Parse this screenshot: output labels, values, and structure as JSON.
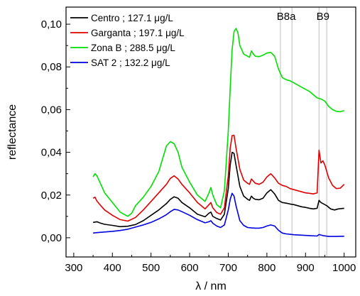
{
  "chart_data": {
    "type": "line",
    "xlabel": "λ / nm",
    "ylabel": "reflectance",
    "xlim": [
      280,
      1030
    ],
    "ylim": [
      -0.009,
      0.108
    ],
    "x_ticks": [
      300,
      400,
      500,
      600,
      700,
      800,
      900,
      1000
    ],
    "x_tick_labels": [
      "300",
      "400",
      "500",
      "600",
      "700",
      "800",
      "900",
      "1000"
    ],
    "y_ticks": [
      0.0,
      0.02,
      0.04,
      0.06,
      0.08,
      0.1
    ],
    "y_tick_labels": [
      "0,00",
      "0,02",
      "0,04",
      "0,06",
      "0,08",
      "0,10"
    ],
    "grid": false,
    "legend_position": "top-left",
    "bands": [
      {
        "label": "B8a",
        "x_start": 835,
        "x_end": 865
      },
      {
        "label": "B9",
        "x_start": 935,
        "x_end": 955
      }
    ],
    "series": [
      {
        "name": "Centro ; 127.1 μg/L",
        "color": "#000000",
        "points": [
          [
            350,
            0.0072
          ],
          [
            360,
            0.0075
          ],
          [
            370,
            0.0068
          ],
          [
            380,
            0.0063
          ],
          [
            400,
            0.0058
          ],
          [
            420,
            0.0052
          ],
          [
            440,
            0.0054
          ],
          [
            460,
            0.0062
          ],
          [
            480,
            0.008
          ],
          [
            500,
            0.0105
          ],
          [
            520,
            0.013
          ],
          [
            540,
            0.016
          ],
          [
            550,
            0.018
          ],
          [
            560,
            0.0192
          ],
          [
            570,
            0.0185
          ],
          [
            580,
            0.0165
          ],
          [
            600,
            0.014
          ],
          [
            620,
            0.011
          ],
          [
            640,
            0.0098
          ],
          [
            650,
            0.0115
          ],
          [
            655,
            0.012
          ],
          [
            660,
            0.01
          ],
          [
            670,
            0.009
          ],
          [
            680,
            0.0083
          ],
          [
            690,
            0.011
          ],
          [
            700,
            0.023
          ],
          [
            705,
            0.034
          ],
          [
            710,
            0.04
          ],
          [
            715,
            0.0395
          ],
          [
            720,
            0.034
          ],
          [
            730,
            0.024
          ],
          [
            740,
            0.0195
          ],
          [
            750,
            0.018
          ],
          [
            755,
            0.0175
          ],
          [
            760,
            0.0195
          ],
          [
            765,
            0.0185
          ],
          [
            770,
            0.018
          ],
          [
            780,
            0.0178
          ],
          [
            790,
            0.0185
          ],
          [
            800,
            0.021
          ],
          [
            810,
            0.0225
          ],
          [
            820,
            0.0205
          ],
          [
            830,
            0.0175
          ],
          [
            840,
            0.0165
          ],
          [
            850,
            0.0162
          ],
          [
            860,
            0.0158
          ],
          [
            870,
            0.0155
          ],
          [
            880,
            0.015
          ],
          [
            890,
            0.0145
          ],
          [
            900,
            0.0142
          ],
          [
            910,
            0.0138
          ],
          [
            920,
            0.0135
          ],
          [
            930,
            0.0138
          ],
          [
            935,
            0.0175
          ],
          [
            940,
            0.0165
          ],
          [
            945,
            0.016
          ],
          [
            955,
            0.015
          ],
          [
            965,
            0.0135
          ],
          [
            975,
            0.013
          ],
          [
            985,
            0.0135
          ],
          [
            1000,
            0.0138
          ]
        ]
      },
      {
        "name": "Garganta ; 197.1 μg/L",
        "color": "#e00000",
        "points": [
          [
            350,
            0.0185
          ],
          [
            355,
            0.019
          ],
          [
            360,
            0.0172
          ],
          [
            370,
            0.015
          ],
          [
            380,
            0.013
          ],
          [
            400,
            0.0105
          ],
          [
            420,
            0.0085
          ],
          [
            440,
            0.0078
          ],
          [
            460,
            0.0095
          ],
          [
            480,
            0.013
          ],
          [
            500,
            0.017
          ],
          [
            520,
            0.021
          ],
          [
            540,
            0.025
          ],
          [
            550,
            0.0278
          ],
          [
            560,
            0.029
          ],
          [
            570,
            0.0275
          ],
          [
            580,
            0.025
          ],
          [
            600,
            0.021
          ],
          [
            620,
            0.0165
          ],
          [
            640,
            0.0135
          ],
          [
            650,
            0.0155
          ],
          [
            655,
            0.0165
          ],
          [
            660,
            0.014
          ],
          [
            670,
            0.0118
          ],
          [
            680,
            0.011
          ],
          [
            690,
            0.014
          ],
          [
            700,
            0.029
          ],
          [
            705,
            0.042
          ],
          [
            710,
            0.0478
          ],
          [
            715,
            0.048
          ],
          [
            720,
            0.042
          ],
          [
            730,
            0.032
          ],
          [
            740,
            0.027
          ],
          [
            750,
            0.0255
          ],
          [
            755,
            0.025
          ],
          [
            760,
            0.0275
          ],
          [
            765,
            0.0265
          ],
          [
            770,
            0.0255
          ],
          [
            780,
            0.025
          ],
          [
            790,
            0.026
          ],
          [
            800,
            0.0285
          ],
          [
            810,
            0.03
          ],
          [
            820,
            0.028
          ],
          [
            830,
            0.0255
          ],
          [
            840,
            0.0245
          ],
          [
            850,
            0.024
          ],
          [
            860,
            0.023
          ],
          [
            870,
            0.0225
          ],
          [
            880,
            0.022
          ],
          [
            890,
            0.0215
          ],
          [
            900,
            0.021
          ],
          [
            910,
            0.0208
          ],
          [
            920,
            0.0205
          ],
          [
            930,
            0.021
          ],
          [
            935,
            0.041
          ],
          [
            940,
            0.035
          ],
          [
            945,
            0.036
          ],
          [
            950,
            0.034
          ],
          [
            960,
            0.028
          ],
          [
            970,
            0.0245
          ],
          [
            980,
            0.023
          ],
          [
            990,
            0.0232
          ],
          [
            1000,
            0.025
          ]
        ]
      },
      {
        "name": "Zona B ; 288.5 μg/L",
        "color": "#00e000",
        "points": [
          [
            350,
            0.0285
          ],
          [
            355,
            0.03
          ],
          [
            360,
            0.029
          ],
          [
            370,
            0.025
          ],
          [
            380,
            0.021
          ],
          [
            400,
            0.0165
          ],
          [
            420,
            0.012
          ],
          [
            440,
            0.01
          ],
          [
            450,
            0.0115
          ],
          [
            460,
            0.015
          ],
          [
            480,
            0.019
          ],
          [
            500,
            0.024
          ],
          [
            520,
            0.031
          ],
          [
            530,
            0.037
          ],
          [
            540,
            0.043
          ],
          [
            550,
            0.045
          ],
          [
            560,
            0.044
          ],
          [
            570,
            0.04
          ],
          [
            580,
            0.033
          ],
          [
            600,
            0.026
          ],
          [
            620,
            0.02
          ],
          [
            640,
            0.017
          ],
          [
            650,
            0.021
          ],
          [
            655,
            0.0235
          ],
          [
            660,
            0.02
          ],
          [
            670,
            0.0155
          ],
          [
            680,
            0.014
          ],
          [
            690,
            0.022
          ],
          [
            700,
            0.05
          ],
          [
            705,
            0.07
          ],
          [
            710,
            0.088
          ],
          [
            715,
            0.0965
          ],
          [
            720,
            0.098
          ],
          [
            725,
            0.096
          ],
          [
            730,
            0.09
          ],
          [
            740,
            0.086
          ],
          [
            750,
            0.085
          ],
          [
            755,
            0.0845
          ],
          [
            760,
            0.0875
          ],
          [
            765,
            0.086
          ],
          [
            770,
            0.085
          ],
          [
            780,
            0.0848
          ],
          [
            790,
            0.0855
          ],
          [
            800,
            0.0865
          ],
          [
            810,
            0.0868
          ],
          [
            820,
            0.085
          ],
          [
            830,
            0.079
          ],
          [
            840,
            0.075
          ],
          [
            850,
            0.074
          ],
          [
            860,
            0.0735
          ],
          [
            870,
            0.0725
          ],
          [
            880,
            0.0715
          ],
          [
            890,
            0.0705
          ],
          [
            900,
            0.0695
          ],
          [
            910,
            0.0685
          ],
          [
            920,
            0.067
          ],
          [
            930,
            0.0655
          ],
          [
            940,
            0.065
          ],
          [
            950,
            0.064
          ],
          [
            960,
            0.0615
          ],
          [
            970,
            0.06
          ],
          [
            980,
            0.0592
          ],
          [
            990,
            0.059
          ],
          [
            1000,
            0.0595
          ]
        ]
      },
      {
        "name": "SAT 2 ; 132.2 μg/L",
        "color": "#0000e0",
        "points": [
          [
            350,
            0.0022
          ],
          [
            360,
            0.0024
          ],
          [
            380,
            0.0027
          ],
          [
            400,
            0.003
          ],
          [
            420,
            0.0034
          ],
          [
            440,
            0.004
          ],
          [
            460,
            0.005
          ],
          [
            480,
            0.006
          ],
          [
            500,
            0.0072
          ],
          [
            520,
            0.0088
          ],
          [
            540,
            0.0108
          ],
          [
            550,
            0.0122
          ],
          [
            560,
            0.0133
          ],
          [
            570,
            0.013
          ],
          [
            580,
            0.0122
          ],
          [
            600,
            0.0105
          ],
          [
            620,
            0.0085
          ],
          [
            640,
            0.007
          ],
          [
            650,
            0.0075
          ],
          [
            655,
            0.008
          ],
          [
            660,
            0.0068
          ],
          [
            670,
            0.0055
          ],
          [
            680,
            0.0048
          ],
          [
            690,
            0.006
          ],
          [
            700,
            0.013
          ],
          [
            705,
            0.018
          ],
          [
            710,
            0.0208
          ],
          [
            715,
            0.0195
          ],
          [
            720,
            0.015
          ],
          [
            730,
            0.008
          ],
          [
            740,
            0.0058
          ],
          [
            750,
            0.0048
          ],
          [
            760,
            0.0046
          ],
          [
            770,
            0.0045
          ],
          [
            780,
            0.0045
          ],
          [
            790,
            0.0048
          ],
          [
            800,
            0.0055
          ],
          [
            810,
            0.006
          ],
          [
            820,
            0.0055
          ],
          [
            830,
            0.0035
          ],
          [
            840,
            0.0022
          ],
          [
            850,
            0.0018
          ],
          [
            870,
            0.0014
          ],
          [
            890,
            0.0012
          ],
          [
            910,
            0.001
          ],
          [
            930,
            0.0008
          ],
          [
            935,
            0.0015
          ],
          [
            945,
            0.001
          ],
          [
            960,
            0.0006
          ],
          [
            980,
            0.0006
          ],
          [
            1000,
            0.0007
          ]
        ]
      }
    ]
  }
}
